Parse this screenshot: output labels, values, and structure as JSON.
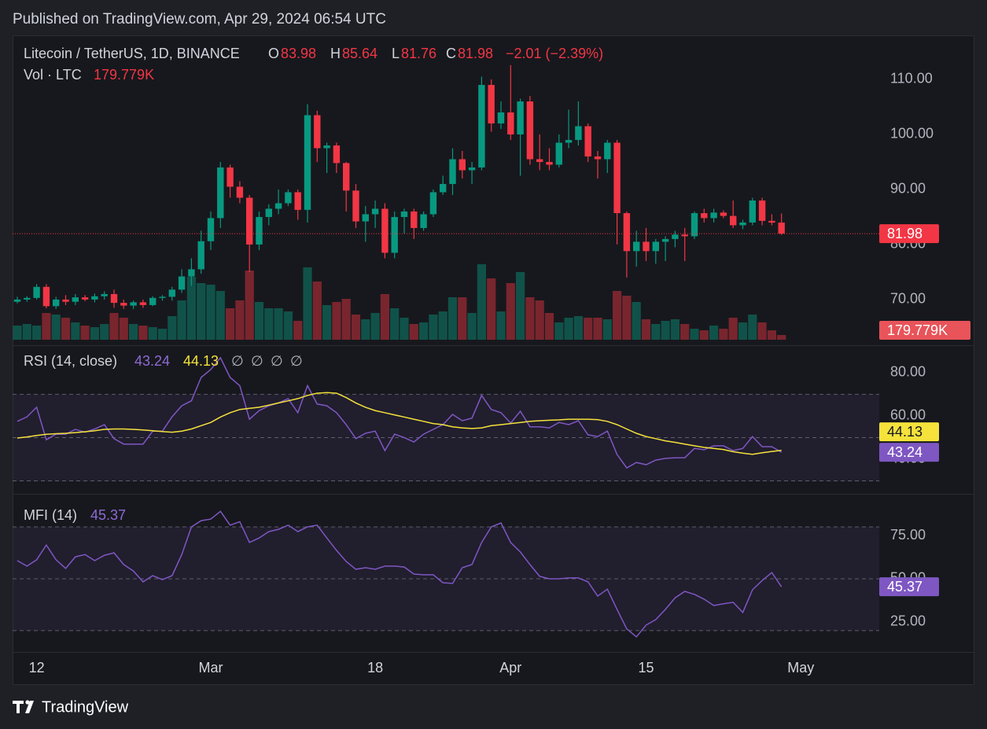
{
  "header": "Published on TradingView.com, Apr 29, 2024 06:54 UTC",
  "footer": "TradingView",
  "chart_data": [
    {
      "type": "candlestick",
      "title": "Litecoin / TetherUS, 1D, BINANCE",
      "ohlc_labels": [
        "O",
        "H",
        "L",
        "C"
      ],
      "change_label": "−2.01 (−2.39%)",
      "colors": {
        "up": "#089981",
        "down": "#f23645"
      },
      "x": [
        "Feb 10",
        "Feb 11",
        "Feb 12",
        "Feb 13",
        "Feb 14",
        "Feb 15",
        "Feb 16",
        "Feb 17",
        "Feb 18",
        "Feb 19",
        "Feb 20",
        "Feb 21",
        "Feb 22",
        "Feb 23",
        "Feb 24",
        "Feb 25",
        "Feb 26",
        "Feb 27",
        "Feb 28",
        "Feb 29",
        "Mar 1",
        "Mar 2",
        "Mar 3",
        "Mar 4",
        "Mar 5",
        "Mar 6",
        "Mar 7",
        "Mar 8",
        "Mar 9",
        "Mar 10",
        "Mar 11",
        "Mar 12",
        "Mar 13",
        "Mar 14",
        "Mar 15",
        "Mar 16",
        "Mar 17",
        "Mar 18",
        "Mar 19",
        "Mar 20",
        "Mar 21",
        "Mar 22",
        "Mar 23",
        "Mar 24",
        "Mar 25",
        "Mar 26",
        "Mar 27",
        "Mar 28",
        "Mar 29",
        "Mar 30",
        "Mar 31",
        "Apr 1",
        "Apr 2",
        "Apr 3",
        "Apr 4",
        "Apr 5",
        "Apr 6",
        "Apr 7",
        "Apr 8",
        "Apr 9",
        "Apr 10",
        "Apr 11",
        "Apr 12",
        "Apr 13",
        "Apr 14",
        "Apr 15",
        "Apr 16",
        "Apr 17",
        "Apr 18",
        "Apr 19",
        "Apr 20",
        "Apr 21",
        "Apr 22",
        "Apr 23",
        "Apr 24",
        "Apr 25",
        "Apr 26",
        "Apr 27",
        "Apr 28",
        "Apr 29"
      ],
      "open": [
        69.6,
        70.0,
        70.3,
        72.3,
        68.8,
        70.0,
        69.6,
        70.4,
        70.0,
        70.6,
        71.0,
        69.4,
        68.9,
        69.5,
        69.0,
        70.3,
        70.5,
        71.8,
        74.2,
        75.5,
        80.6,
        84.8,
        94.0,
        90.5,
        88.5,
        80.0,
        85.0,
        86.5,
        87.5,
        89.5,
        86.3,
        103.5,
        97.5,
        98.0,
        94.8,
        89.8,
        84.2,
        85.5,
        86.5,
        78.5,
        85.0,
        86.0,
        83.0,
        85.5,
        89.5,
        91.0,
        95.5,
        93.5,
        94.0,
        109.0,
        102.0,
        104.0,
        100.0,
        106.0,
        95.5,
        95.0,
        94.5,
        98.5,
        99.0,
        101.5,
        96.0,
        95.5,
        98.5,
        85.7,
        78.8,
        80.5,
        78.8,
        80.5,
        81.0,
        81.8,
        81.5,
        85.7,
        84.8,
        85.8,
        85.2,
        83.5,
        84.0,
        88.0,
        84.3,
        83.98
      ],
      "high": [
        70.5,
        70.6,
        72.8,
        72.8,
        70.5,
        70.8,
        71.0,
        70.8,
        71.1,
        71.5,
        71.8,
        70.0,
        69.8,
        70.0,
        70.6,
        70.8,
        72.3,
        75.5,
        77.5,
        82.5,
        86.0,
        95.0,
        94.5,
        91.5,
        89.0,
        86.0,
        87.3,
        90.0,
        90.0,
        90.0,
        105.5,
        104.3,
        98.5,
        98.5,
        95.0,
        91.0,
        87.0,
        88.0,
        87.5,
        86.0,
        86.5,
        86.5,
        86.0,
        90.0,
        92.5,
        97.5,
        97.0,
        95.0,
        110.5,
        110.0,
        106.0,
        112.6,
        106.5,
        107.0,
        100.0,
        97.5,
        100.0,
        104.5,
        106.0,
        102.0,
        97.0,
        99.0,
        99.0,
        86.0,
        82.5,
        83.0,
        81.0,
        81.5,
        82.5,
        83.0,
        86.0,
        86.5,
        86.5,
        86.2,
        88.0,
        84.5,
        88.5,
        88.5,
        85.5,
        85.64
      ],
      "low": [
        69.3,
        69.6,
        70.0,
        68.4,
        68.3,
        69.0,
        69.0,
        69.7,
        69.5,
        70.0,
        68.5,
        68.3,
        68.3,
        68.5,
        68.8,
        69.8,
        69.8,
        71.2,
        72.5,
        74.7,
        79.0,
        83.0,
        88.5,
        87.5,
        75.0,
        79.0,
        83.5,
        85.5,
        87.0,
        84.5,
        84.0,
        95.0,
        93.0,
        93.0,
        86.0,
        83.0,
        80.5,
        83.0,
        77.5,
        77.5,
        82.0,
        81.0,
        82.5,
        85.0,
        89.0,
        89.0,
        92.0,
        91.0,
        93.5,
        100.5,
        101.0,
        99.0,
        92.5,
        94.5,
        93.5,
        93.5,
        94.0,
        97.5,
        98.0,
        95.0,
        92.0,
        93.0,
        80.0,
        74.0,
        76.0,
        77.0,
        76.5,
        77.0,
        79.5,
        77.0,
        81.0,
        84.0,
        84.0,
        84.8,
        83.0,
        82.8,
        83.5,
        83.5,
        83.5,
        81.76
      ],
      "close": [
        70.0,
        70.3,
        72.3,
        68.8,
        70.0,
        69.6,
        70.4,
        70.0,
        70.6,
        71.0,
        69.4,
        68.9,
        69.5,
        69.0,
        70.3,
        70.5,
        71.8,
        74.2,
        75.5,
        80.6,
        84.8,
        94.0,
        90.5,
        88.5,
        80.0,
        85.0,
        86.5,
        87.5,
        89.5,
        86.3,
        103.5,
        97.5,
        98.0,
        94.8,
        89.8,
        84.2,
        85.5,
        86.5,
        78.5,
        85.0,
        86.0,
        83.0,
        85.5,
        89.5,
        91.0,
        95.5,
        93.5,
        94.0,
        109.0,
        102.0,
        104.0,
        100.0,
        106.0,
        95.5,
        95.0,
        94.5,
        98.5,
        99.0,
        101.5,
        96.0,
        95.5,
        98.5,
        85.7,
        78.8,
        80.5,
        78.8,
        80.5,
        81.0,
        81.8,
        81.5,
        85.7,
        84.8,
        85.8,
        85.2,
        83.5,
        84.0,
        88.0,
        84.3,
        83.98,
        81.98
      ],
      "ylim": [
        62.7,
        118
      ],
      "yticks": [
        {
          "value": 70,
          "label": "70.00"
        },
        {
          "value": 80,
          "label": "80.00"
        },
        {
          "value": 90,
          "label": "90.00"
        },
        {
          "value": 100,
          "label": "100.00"
        },
        {
          "value": 110,
          "label": "110.00"
        }
      ],
      "xticks": [
        {
          "value": "Feb 12",
          "label": "12"
        },
        {
          "value": "Mar 1",
          "label": "Mar"
        },
        {
          "value": "Mar 18",
          "label": "18"
        },
        {
          "value": "Apr 1",
          "label": "Apr"
        },
        {
          "value": "Apr 15",
          "label": "15"
        },
        {
          "value": "May 1",
          "label": "May"
        }
      ],
      "grid": false,
      "volume": {
        "name": "Vol · LTC",
        "last_label": "179.779K",
        "ylim": [
          0,
          11610000
        ],
        "values": [
          540000,
          600000,
          540000,
          1020000,
          960000,
          840000,
          660000,
          540000,
          480000,
          600000,
          1020000,
          840000,
          600000,
          540000,
          480000,
          420000,
          900000,
          1500000,
          2400000,
          2160000,
          2100000,
          1860000,
          1200000,
          1500000,
          2640000,
          1440000,
          1200000,
          1200000,
          1080000,
          720000,
          2760000,
          2220000,
          1320000,
          1440000,
          1560000,
          960000,
          780000,
          1020000,
          1740000,
          1200000,
          840000,
          600000,
          660000,
          960000,
          1080000,
          1620000,
          1620000,
          1020000,
          2880000,
          2340000,
          1080000,
          2160000,
          2580000,
          1620000,
          1500000,
          1020000,
          660000,
          840000,
          900000,
          840000,
          840000,
          780000,
          1860000,
          1680000,
          1440000,
          780000,
          600000,
          720000,
          780000,
          600000,
          420000,
          360000,
          540000,
          420000,
          840000,
          660000,
          960000,
          660000,
          360000,
          179779
        ]
      }
    },
    {
      "type": "line",
      "title": "RSI (14, close)",
      "extra_labels": [
        "∅",
        "∅",
        "∅",
        "∅"
      ],
      "series": [
        {
          "color": "#7e57c2",
          "values": [
            57.5,
            59.6,
            64,
            49,
            51.6,
            51.6,
            53.8,
            52.5,
            54,
            56,
            49.5,
            47,
            47,
            47,
            53,
            53,
            59.6,
            64.7,
            67,
            77.8,
            81.5,
            86.9,
            77.8,
            74,
            58.5,
            62.5,
            64.7,
            66,
            68,
            61.5,
            74,
            65.5,
            64.7,
            61.5,
            56,
            49.5,
            52,
            53,
            44,
            51.6,
            50,
            48,
            51.6,
            53.8,
            56,
            60.7,
            57.8,
            59,
            69.5,
            63,
            61.5,
            56.7,
            62.2,
            55,
            55,
            54.5,
            57,
            56,
            57.8,
            51.3,
            50.5,
            53,
            42.2,
            36,
            38.5,
            37.5,
            39.6,
            40.4,
            40.7,
            40.7,
            45,
            44.4,
            46.2,
            46.2,
            44,
            45,
            50.5,
            45.8,
            45.8,
            43.24
          ]
        },
        {
          "color": "#f5e23b",
          "values": [
            49.8,
            50.3,
            51,
            51.5,
            51.8,
            52,
            52.3,
            52.7,
            53.2,
            53.8,
            54,
            54,
            53.8,
            53.5,
            53.2,
            52.8,
            52.5,
            53,
            54,
            55.5,
            57,
            59.5,
            61.5,
            63,
            63.5,
            64,
            65,
            66,
            67,
            68,
            69.5,
            70.5,
            70.8,
            70.5,
            68.5,
            66,
            64,
            62.5,
            61.5,
            60.5,
            59.5,
            58.5,
            57.5,
            56.5,
            56,
            55,
            54.5,
            54.2,
            54.5,
            55.5,
            56,
            56.5,
            57,
            57.5,
            57.8,
            58,
            58.2,
            58.5,
            58.5,
            58.5,
            58.3,
            57.5,
            56,
            54,
            52,
            50.5,
            49.5,
            48.5,
            47.8,
            47,
            46.2,
            45.5,
            45,
            44.5,
            43.5,
            42.8,
            42.3,
            43,
            43.6,
            44.13
          ]
        }
      ],
      "ylim": [
        25.1,
        90.5
      ],
      "yticks": [
        {
          "value": 40,
          "label": "40.00"
        },
        {
          "value": 60,
          "label": "60.00"
        },
        {
          "value": 80,
          "label": "80.00"
        }
      ],
      "levels": [
        70,
        50,
        30
      ]
    },
    {
      "type": "line",
      "title": "MFI (14)",
      "series": [
        {
          "color": "#7e57c2",
          "values": [
            60.5,
            57.3,
            61,
            69.5,
            61,
            56,
            62.7,
            64,
            60.5,
            63.6,
            65,
            58.2,
            54.5,
            48.2,
            51.8,
            49.5,
            51.8,
            64,
            80,
            83.6,
            84.5,
            89,
            81,
            83,
            71,
            73.6,
            77.3,
            78.6,
            81,
            77.3,
            80,
            81,
            73.6,
            66.4,
            60,
            55.5,
            56.4,
            55.5,
            57.3,
            57.3,
            56.8,
            52.7,
            52.3,
            52.3,
            47.7,
            47.3,
            56.4,
            58.2,
            71,
            80,
            82.3,
            71,
            65.5,
            58.2,
            51.4,
            50,
            50,
            50.5,
            50.5,
            48.2,
            40,
            44,
            32.3,
            21,
            16.4,
            23.2,
            26.4,
            32.3,
            39,
            42.7,
            41,
            38.2,
            34.5,
            35.5,
            36.4,
            30.5,
            43.6,
            49,
            53.6,
            45.37
          ]
        }
      ],
      "ylim": [
        9.5,
        97.3
      ],
      "yticks": [
        {
          "value": 25,
          "label": "25.00"
        },
        {
          "value": 50,
          "label": "50.00"
        },
        {
          "value": 75,
          "label": "75.00"
        }
      ],
      "levels": [
        80,
        50,
        20
      ]
    }
  ]
}
